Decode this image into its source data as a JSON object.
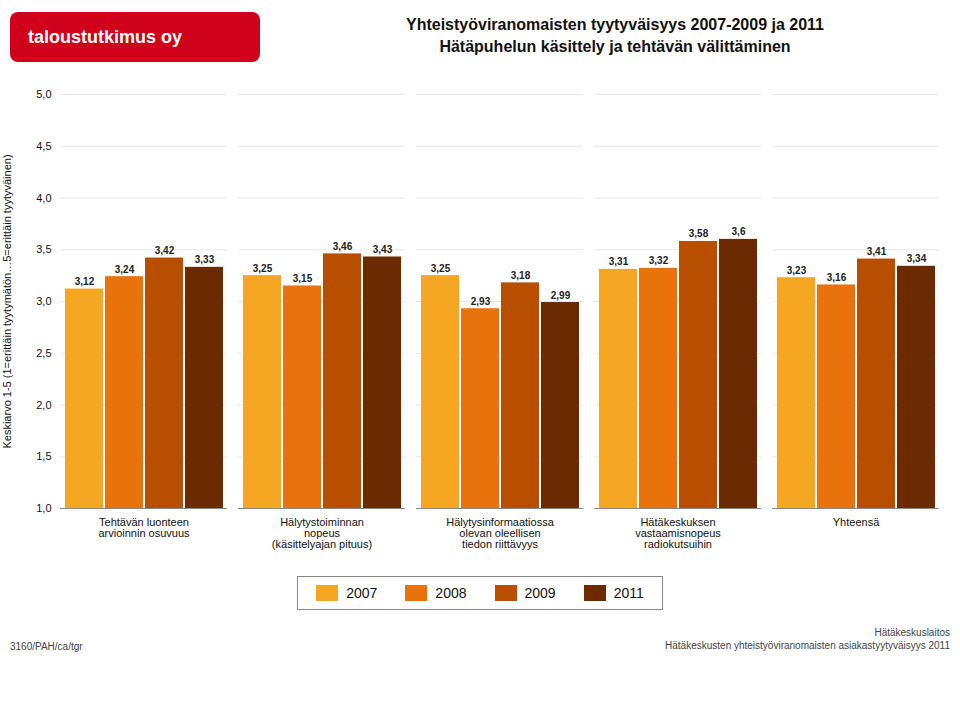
{
  "chart_data": {
    "type": "bar",
    "title": "Yhteistyöviranomaisten tyytyväisyys 2007-2009 ja 2011",
    "subtitle": "Hätäpuhelun käsittely ja tehtävän välittäminen",
    "y_label": "Keskiarvo 1-5 (1=erittäin tyytymätön…5=erittäin tyytyväinen)",
    "categories": [
      "Tehtävän luonteen\narvioinnin osuvuus",
      "Hälytystoiminnan\nnopeus\n(käsittelyajan pituus)",
      "Hälytysinformaatiossa\nolevan oleellisen\ntiedon riittävyys",
      "Hätäkeskuksen\nvastaamisnopeus\nradiokutsuihin",
      "Yhteensä"
    ],
    "series": [
      {
        "name": "2007",
        "color": "#F5A623",
        "values": [
          3.12,
          3.25,
          3.25,
          3.31,
          3.23
        ],
        "value_labels": [
          "3,12",
          "3,25",
          "3,25",
          "3,31",
          "3,23"
        ]
      },
      {
        "name": "2008",
        "color": "#E8720C",
        "values": [
          3.24,
          3.15,
          2.93,
          3.32,
          3.16
        ],
        "value_labels": [
          "3,24",
          "3,15",
          "2,93",
          "3,32",
          "3,16"
        ]
      },
      {
        "name": "2009",
        "color": "#B84E00",
        "values": [
          3.42,
          3.46,
          3.18,
          3.58,
          3.41
        ],
        "value_labels": [
          "3,42",
          "3,46",
          "3,18",
          "3,58",
          "3,41"
        ]
      },
      {
        "name": "2011",
        "color": "#6B2A00",
        "values": [
          3.33,
          3.43,
          2.99,
          3.6,
          3.34
        ],
        "value_labels": [
          "3,33",
          "3,43",
          "2,99",
          "3,6",
          "3,34"
        ]
      }
    ],
    "ylim": [
      1.0,
      5.0
    ],
    "yticks": [
      {
        "value": 1.0,
        "label": "1,0"
      },
      {
        "value": 1.5,
        "label": "1,5"
      },
      {
        "value": 2.0,
        "label": "2,0"
      },
      {
        "value": 2.5,
        "label": "2,5"
      },
      {
        "value": 3.0,
        "label": "3,0"
      },
      {
        "value": 3.5,
        "label": "3,5"
      },
      {
        "value": 4.0,
        "label": "4,0"
      },
      {
        "value": 4.5,
        "label": "4,5"
      },
      {
        "value": 5.0,
        "label": "5,0"
      }
    ],
    "grid": true,
    "data_labels": true,
    "legend": "bottom",
    "annotations": [
      "taloustutkimus oy",
      "3160/PAH/ca/tgr",
      "Hätäkeskuslaitos",
      "Hätäkeskusten yhteistyöviranomaisten asiakastyytyväisyys 2011"
    ]
  }
}
